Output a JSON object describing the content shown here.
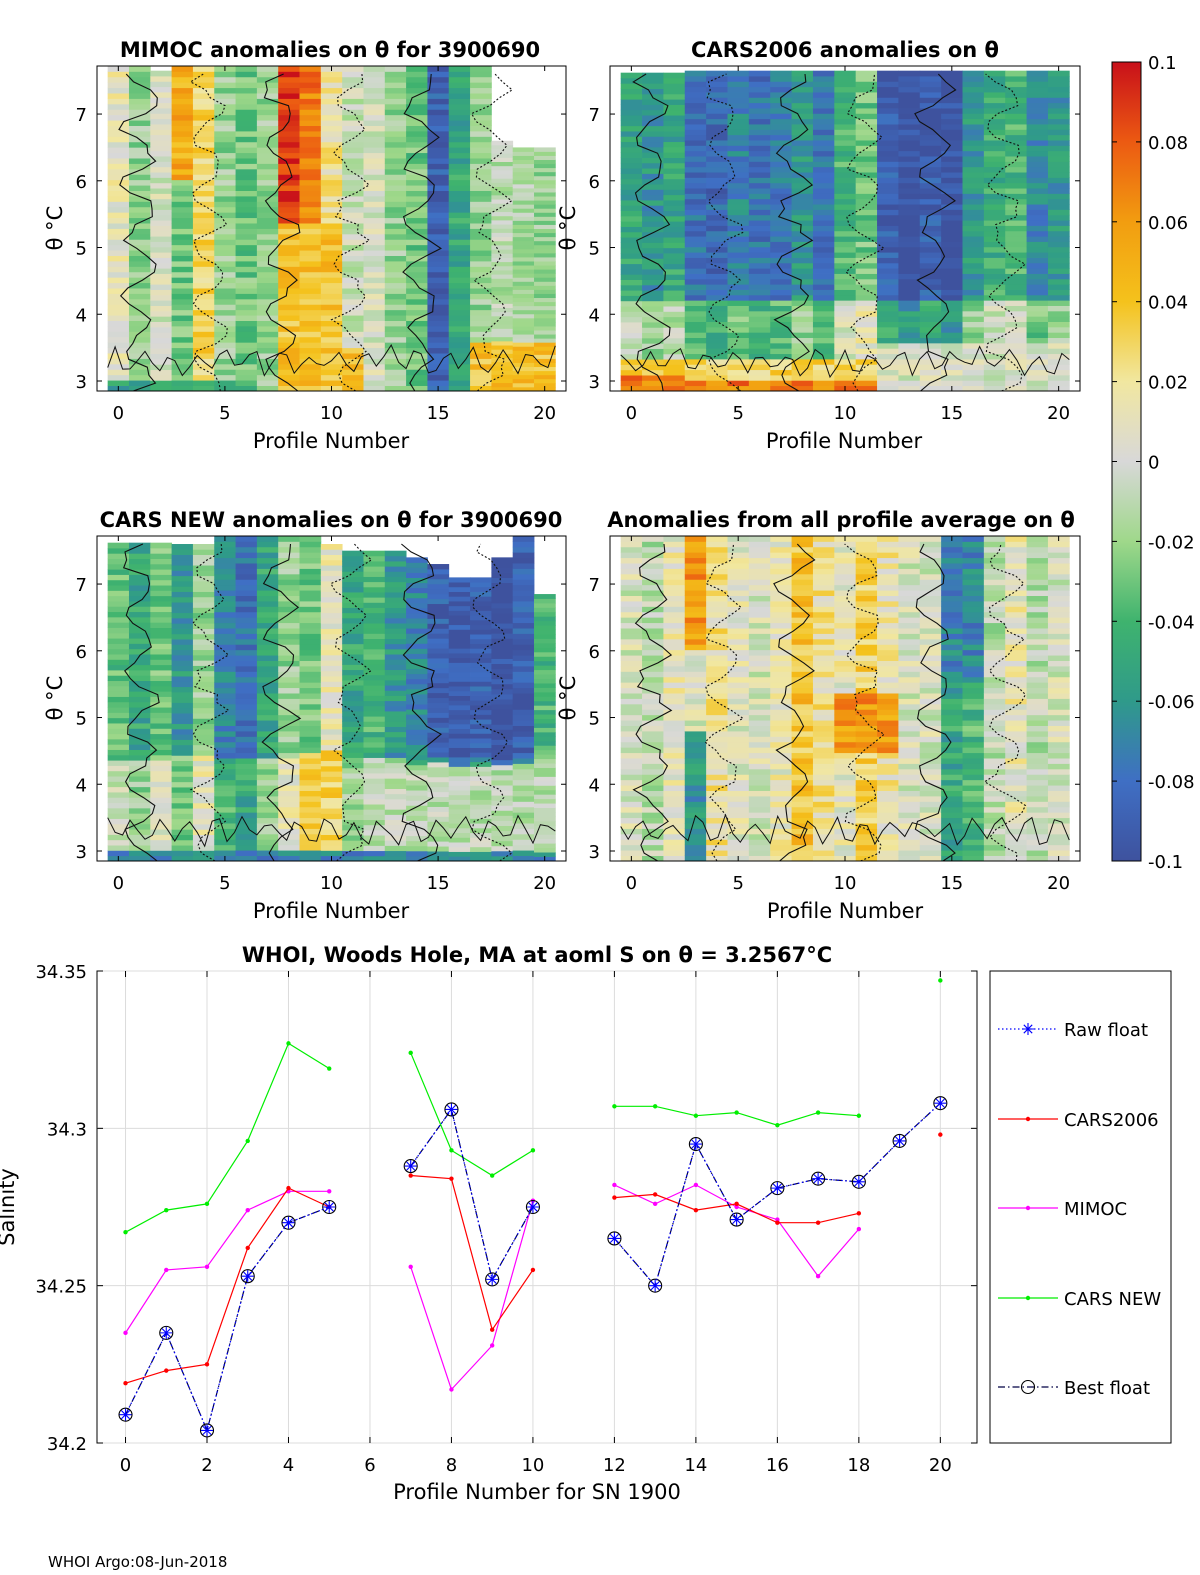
{
  "heatmaps": [
    {
      "title": "MIMOC anomalies on θ  for 3900690",
      "xlabel": "Profile Number",
      "ylabel": "θ °C",
      "field": "mimoc"
    },
    {
      "title": "CARS2006 anomalies on θ",
      "xlabel": "Profile Number",
      "ylabel": "θ °C",
      "field": "cars2006"
    },
    {
      "title": "CARS NEW anomalies on θ for 3900690",
      "xlabel": "Profile Number",
      "ylabel": "θ °C",
      "field": "carsnew"
    },
    {
      "title": "Anomalies from all profile average on θ",
      "xlabel": "Profile Number",
      "ylabel": "θ °C",
      "field": "avg"
    }
  ],
  "heatmap_axes": {
    "x_ticks": [
      "0",
      "5",
      "10",
      "15",
      "20"
    ],
    "x_tick_values": [
      0,
      5,
      10,
      15,
      20
    ],
    "y_ticks": [
      "3",
      "4",
      "5",
      "6",
      "7"
    ],
    "y_tick_values": [
      3,
      4,
      5,
      6,
      7
    ],
    "xlim": [
      -1,
      21
    ],
    "ylim": [
      2.85,
      7.72
    ]
  },
  "colorbar": {
    "ticks": [
      "0.1",
      "0.08",
      "0.06",
      "0.04",
      "0.02",
      "0",
      "-0.02",
      "-0.04",
      "-0.06",
      "-0.08",
      "-0.1"
    ],
    "range": [
      -0.1,
      0.1
    ]
  },
  "chart_data": {
    "type": "line",
    "title": "WHOI, Woods Hole, MA at aoml S on θ = 3.2567°C",
    "xlabel": "Profile Number for SN 1900",
    "ylabel": "Salinity",
    "xlim": [
      -0.7,
      20.9
    ],
    "ylim": [
      34.2,
      34.35
    ],
    "x_ticks": [
      0,
      2,
      4,
      6,
      8,
      10,
      12,
      14,
      16,
      18,
      20
    ],
    "y_ticks": [
      "34.2",
      "34.25",
      "34.3",
      "34.35"
    ],
    "y_tick_values": [
      34.2,
      34.25,
      34.3,
      34.35
    ],
    "x": [
      0,
      1,
      2,
      3,
      4,
      5,
      6,
      7,
      8,
      9,
      10,
      11,
      12,
      13,
      14,
      15,
      16,
      17,
      18,
      19,
      20
    ],
    "series": [
      {
        "name": "Raw float",
        "color": "#0000ff",
        "style": "dotted",
        "marker": "star",
        "values": [
          34.209,
          34.235,
          34.204,
          34.253,
          34.27,
          34.275,
          null,
          34.288,
          34.306,
          34.252,
          34.275,
          null,
          34.265,
          34.25,
          34.295,
          34.271,
          34.281,
          34.284,
          34.283,
          34.296,
          34.308
        ]
      },
      {
        "name": "CARS2006",
        "color": "#ff0000",
        "style": "solid",
        "marker": "dot",
        "values": [
          34.219,
          34.223,
          34.225,
          34.262,
          34.281,
          34.275,
          null,
          34.285,
          34.284,
          34.236,
          34.255,
          null,
          34.278,
          34.279,
          34.274,
          34.276,
          34.27,
          34.27,
          34.273,
          null,
          34.298
        ]
      },
      {
        "name": "MIMOC",
        "color": "#ff00ff",
        "style": "solid",
        "marker": "dot",
        "values": [
          34.235,
          34.255,
          34.256,
          34.274,
          34.28,
          34.28,
          null,
          34.256,
          34.217,
          34.231,
          34.277,
          null,
          34.282,
          34.276,
          34.282,
          34.275,
          34.271,
          34.253,
          34.268,
          null,
          null
        ]
      },
      {
        "name": "CARS NEW",
        "color": "#00ee00",
        "style": "solid",
        "marker": "dot",
        "values": [
          34.267,
          34.274,
          34.276,
          34.296,
          34.327,
          34.319,
          null,
          34.324,
          34.293,
          34.285,
          34.293,
          null,
          34.307,
          34.307,
          34.304,
          34.305,
          34.301,
          34.305,
          34.304,
          null,
          34.347
        ]
      },
      {
        "name": "Best float",
        "color": "#000044",
        "style": "dashdot",
        "marker": "circle",
        "values": [
          34.209,
          34.235,
          34.204,
          34.253,
          34.27,
          34.275,
          null,
          34.288,
          34.306,
          34.252,
          34.275,
          null,
          34.265,
          34.25,
          34.295,
          34.271,
          34.281,
          34.284,
          34.283,
          34.296,
          34.308
        ]
      }
    ]
  },
  "footer": "WHOI Argo:08-Jun-2018"
}
